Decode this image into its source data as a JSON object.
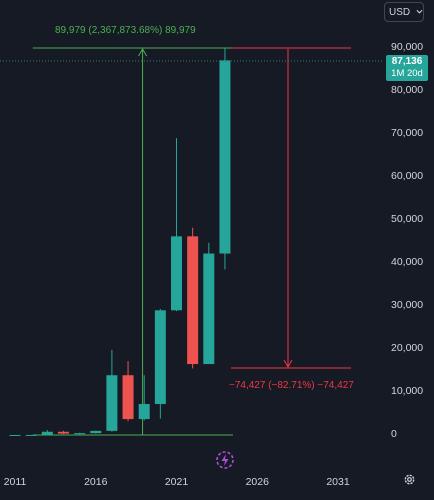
{
  "toolbar": {
    "currency": "USD",
    "currency_icon": "chevron-down-icon"
  },
  "price_badge": {
    "value": "87,136",
    "timeframe": "1M 20d",
    "color": "#26a69a"
  },
  "measures": {
    "up_label": "89,979 (2,367,873.68%) 89,979",
    "down_label": "−74,427 (−82.71%) −74,427",
    "up_color": "#4caf50",
    "down_color": "#f23645"
  },
  "colors": {
    "up": "#26a69a",
    "down": "#ef5350",
    "background": "#161a25",
    "text": "#d1d4dc"
  },
  "chart_data": {
    "type": "candlestick",
    "interval": "yearly",
    "y_ticks": [
      "90,000",
      "80,000",
      "70,000",
      "60,000",
      "50,000",
      "40,000",
      "30,000",
      "20,000",
      "10,000",
      "0"
    ],
    "y_tick_values": [
      90000,
      80000,
      70000,
      60000,
      50000,
      40000,
      30000,
      20000,
      10000,
      0
    ],
    "x_ticks": [
      "2011",
      "2016",
      "2021",
      "2026",
      "2031"
    ],
    "x_tick_values": [
      2011,
      2016,
      2021,
      2026,
      2031
    ],
    "ylim": [
      0,
      94000
    ],
    "xlim": [
      2010.3,
      2032.7
    ],
    "grid": false,
    "candles": [
      {
        "year": 2011,
        "open": 0.3,
        "high": 30,
        "low": 0.3,
        "close": 4.7
      },
      {
        "year": 2012,
        "open": 4.7,
        "high": 15,
        "low": 4,
        "close": 13.5
      },
      {
        "year": 2013,
        "open": 13.5,
        "high": 1150,
        "low": 13,
        "close": 750
      },
      {
        "year": 2014,
        "open": 750,
        "high": 1000,
        "low": 200,
        "close": 320
      },
      {
        "year": 2015,
        "open": 320,
        "high": 500,
        "low": 170,
        "close": 430
      },
      {
        "year": 2016,
        "open": 430,
        "high": 1000,
        "low": 350,
        "close": 960
      },
      {
        "year": 2017,
        "open": 960,
        "high": 19800,
        "low": 750,
        "close": 13900
      },
      {
        "year": 2018,
        "open": 13900,
        "high": 17200,
        "low": 3200,
        "close": 3700
      },
      {
        "year": 2019,
        "open": 3700,
        "high": 13900,
        "low": 3400,
        "close": 7200
      },
      {
        "year": 2020,
        "open": 7200,
        "high": 29300,
        "low": 3800,
        "close": 29000
      },
      {
        "year": 2021,
        "open": 29000,
        "high": 69000,
        "low": 28800,
        "close": 46200
      },
      {
        "year": 2022,
        "open": 46200,
        "high": 48200,
        "low": 15500,
        "close": 16500
      },
      {
        "year": 2023,
        "open": 16500,
        "high": 44700,
        "low": 16500,
        "close": 42200
      },
      {
        "year": 2024,
        "open": 42200,
        "high": 90000,
        "low": 38500,
        "close": 87136
      }
    ],
    "measurement_up": {
      "label": "89,979 (2,367,873.68%) 89,979",
      "from_value": 0,
      "to_value": 90000,
      "from_year": 2011,
      "to_year": 2027.8
    },
    "measurement_down": {
      "label": "−74,427 (−82.71%) −74,427",
      "from_value": 90000,
      "to_value": 15573,
      "from_year": 2024,
      "to_year": 2030.3
    },
    "last_price": 87136,
    "last_price_label": "87,136",
    "timeframe_label": "1M 20d"
  }
}
